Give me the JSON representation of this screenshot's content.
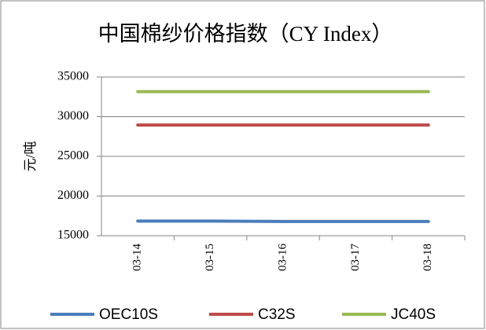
{
  "chart_data": {
    "type": "line",
    "title": "中国棉纱价格指数（CY Index）",
    "y_label": "元/吨",
    "categories": [
      "03-14",
      "03-15",
      "03-16",
      "03-17",
      "03-18"
    ],
    "series": [
      {
        "name": "OEC10S",
        "color": "#4a7ebb",
        "values": [
          16850,
          16850,
          16800,
          16800,
          16800
        ]
      },
      {
        "name": "C32S",
        "color": "#be4b48",
        "values": [
          28950,
          28950,
          28950,
          28950,
          28950
        ]
      },
      {
        "name": "JC40S",
        "color": "#98b954",
        "values": [
          33150,
          33150,
          33150,
          33150,
          33150
        ]
      }
    ],
    "ylim": [
      15000,
      35000
    ],
    "yticks": [
      15000,
      20000,
      25000,
      30000,
      35000
    ],
    "grid": true,
    "legend": "bottom"
  }
}
